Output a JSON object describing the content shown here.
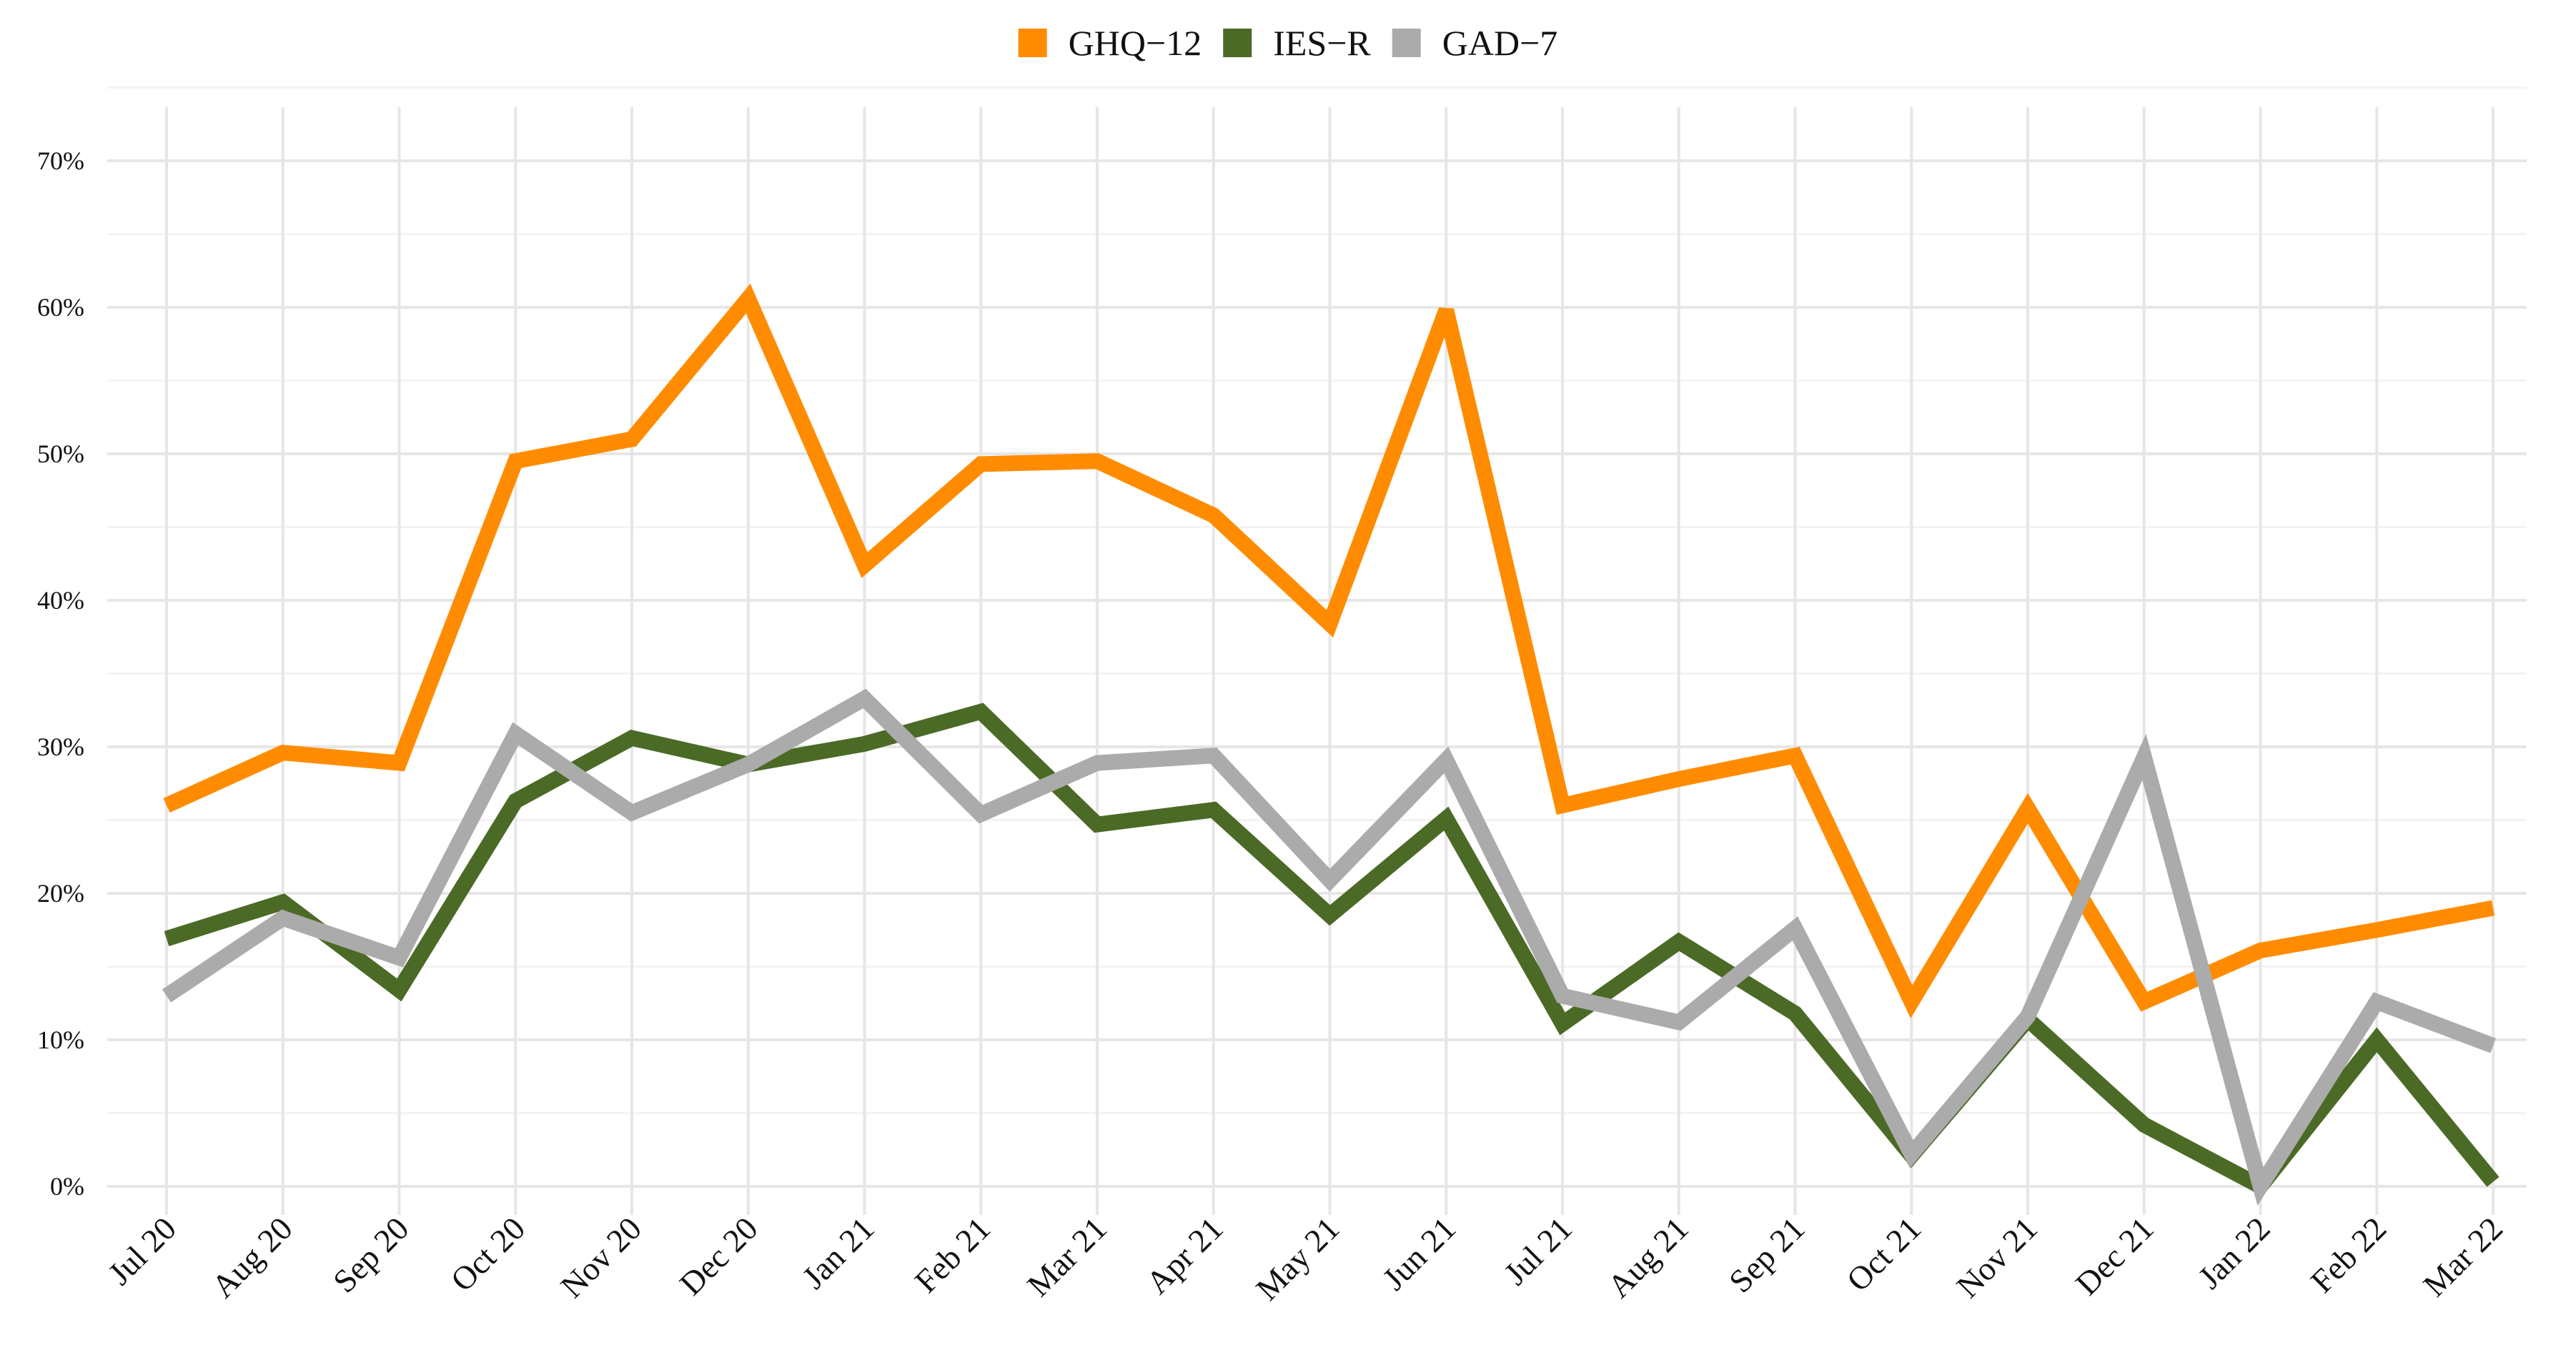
{
  "chart_data": {
    "type": "line",
    "title": "",
    "xlabel": "",
    "ylabel": "",
    "categories": [
      "Jul 20",
      "Aug 20",
      "Sep 20",
      "Oct 20",
      "Nov 20",
      "Dec 20",
      "Jan 21",
      "Feb 21",
      "Mar 21",
      "Apr 21",
      "May 21",
      "Jun 21",
      "Jul 21",
      "Aug 21",
      "Sep 21",
      "Oct 21",
      "Nov 21",
      "Dec 21",
      "Jan 22",
      "Feb 22",
      "Mar 22"
    ],
    "ylim": [
      0,
      70
    ],
    "yticks": [
      0,
      10,
      20,
      30,
      40,
      50,
      60,
      70
    ],
    "ytick_labels": [
      "0%",
      "10%",
      "20%",
      "30%",
      "40%",
      "50%",
      "60%",
      "70%"
    ],
    "grid": true,
    "legend_position": "top-center",
    "series": [
      {
        "name": "GHQ−12",
        "color": "#FF8C00",
        "values": [
          26,
          29.6,
          28.9,
          49.5,
          51,
          60.6,
          42.4,
          49.3,
          49.5,
          45.8,
          38.4,
          59.8,
          26,
          27.8,
          29.4,
          12.6,
          25.8,
          12.6,
          16.1,
          17.5,
          19
        ]
      },
      {
        "name": "IES−R",
        "color": "#4B6A26",
        "values": [
          16.9,
          19.4,
          13.4,
          26.3,
          30.6,
          28.8,
          30.2,
          32.4,
          24.7,
          25.7,
          18.5,
          25.1,
          11.1,
          16.7,
          11.8,
          2.1,
          11.4,
          4.2,
          0,
          10,
          0.3
        ]
      },
      {
        "name": "GAD−7",
        "color": "#ABABAB",
        "values": [
          13,
          18.3,
          15.6,
          30.9,
          25.5,
          28.8,
          33.3,
          25.4,
          28.9,
          29.4,
          20.9,
          29.1,
          13,
          11.2,
          17.6,
          2.2,
          11.6,
          29.3,
          0,
          12.6,
          9.6
        ]
      }
    ]
  }
}
